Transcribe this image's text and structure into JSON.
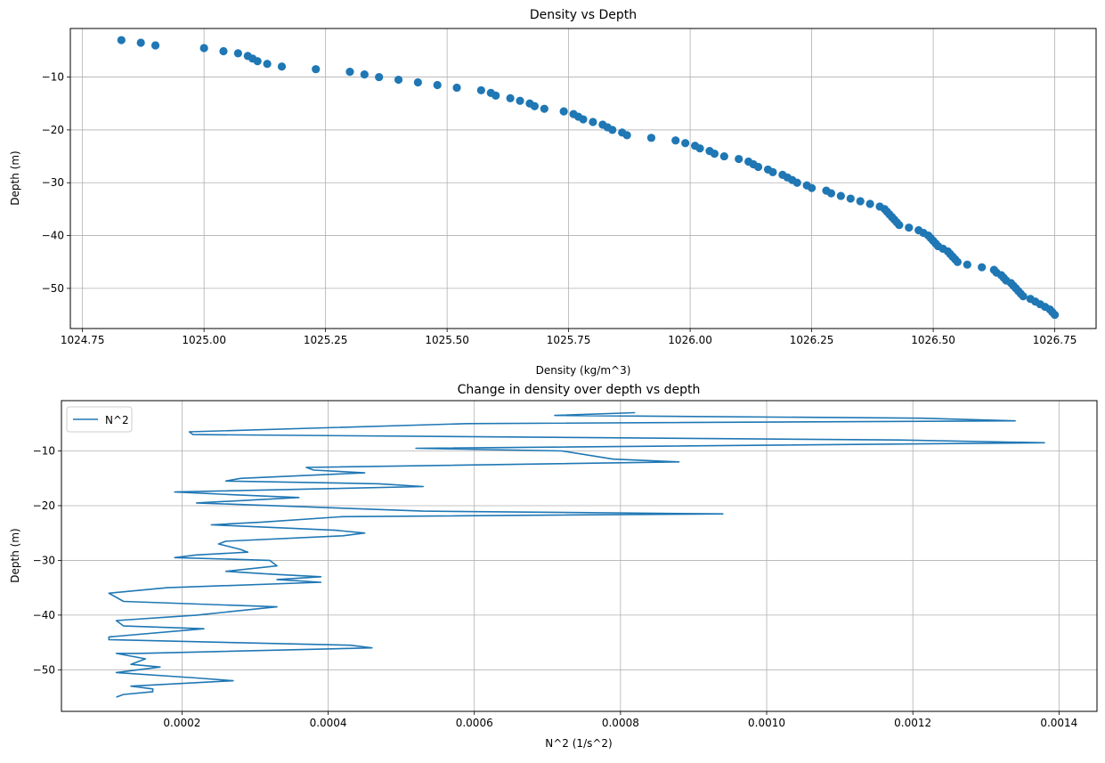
{
  "colors": {
    "series": "#1f77b4",
    "grid": "#b0b0b0",
    "axis": "#000000",
    "background": "#ffffff"
  },
  "chart_data": [
    {
      "type": "scatter",
      "title": "Density vs Depth",
      "xlabel": "Density (kg/m^3)",
      "ylabel": "Depth (m)",
      "xlim": [
        1024.725,
        1026.835
      ],
      "ylim": [
        -57.6,
        -0.8
      ],
      "xticks": [
        1024.75,
        1025.0,
        1025.25,
        1025.5,
        1025.75,
        1026.0,
        1026.25,
        1026.5,
        1026.75
      ],
      "xtick_labels": [
        "1024.75",
        "1025.00",
        "1025.25",
        "1025.50",
        "1025.75",
        "1026.00",
        "1026.25",
        "1026.50",
        "1026.75"
      ],
      "yticks": [
        -10,
        -20,
        -30,
        -40,
        -50
      ],
      "ytick_labels": [
        "−10",
        "−20",
        "−30",
        "−40",
        "−50"
      ],
      "grid": true,
      "legend": null,
      "points": [
        [
          1024.83,
          -3.0
        ],
        [
          1024.87,
          -3.5
        ],
        [
          1024.9,
          -4.0
        ],
        [
          1025.0,
          -4.5
        ],
        [
          1025.04,
          -5.1
        ],
        [
          1025.07,
          -5.5
        ],
        [
          1025.09,
          -6.0
        ],
        [
          1025.1,
          -6.5
        ],
        [
          1025.11,
          -7.0
        ],
        [
          1025.13,
          -7.5
        ],
        [
          1025.16,
          -8.0
        ],
        [
          1025.23,
          -8.5
        ],
        [
          1025.3,
          -9.0
        ],
        [
          1025.33,
          -9.5
        ],
        [
          1025.36,
          -10.0
        ],
        [
          1025.4,
          -10.5
        ],
        [
          1025.44,
          -11.0
        ],
        [
          1025.48,
          -11.5
        ],
        [
          1025.52,
          -12.0
        ],
        [
          1025.57,
          -12.5
        ],
        [
          1025.59,
          -13.0
        ],
        [
          1025.6,
          -13.5
        ],
        [
          1025.63,
          -14.0
        ],
        [
          1025.65,
          -14.5
        ],
        [
          1025.67,
          -15.0
        ],
        [
          1025.68,
          -15.5
        ],
        [
          1025.7,
          -16.0
        ],
        [
          1025.74,
          -16.5
        ],
        [
          1025.76,
          -17.0
        ],
        [
          1025.77,
          -17.5
        ],
        [
          1025.78,
          -18.0
        ],
        [
          1025.8,
          -18.5
        ],
        [
          1025.82,
          -19.0
        ],
        [
          1025.83,
          -19.5
        ],
        [
          1025.84,
          -20.0
        ],
        [
          1025.86,
          -20.5
        ],
        [
          1025.87,
          -21.0
        ],
        [
          1025.92,
          -21.5
        ],
        [
          1025.97,
          -22.0
        ],
        [
          1025.99,
          -22.5
        ],
        [
          1026.01,
          -23.0
        ],
        [
          1026.02,
          -23.5
        ],
        [
          1026.04,
          -24.0
        ],
        [
          1026.05,
          -24.5
        ],
        [
          1026.07,
          -25.0
        ],
        [
          1026.1,
          -25.5
        ],
        [
          1026.12,
          -26.0
        ],
        [
          1026.13,
          -26.5
        ],
        [
          1026.14,
          -27.0
        ],
        [
          1026.16,
          -27.5
        ],
        [
          1026.17,
          -28.0
        ],
        [
          1026.19,
          -28.5
        ],
        [
          1026.2,
          -29.0
        ],
        [
          1026.21,
          -29.5
        ],
        [
          1026.22,
          -30.0
        ],
        [
          1026.24,
          -30.5
        ],
        [
          1026.25,
          -31.0
        ],
        [
          1026.28,
          -31.5
        ],
        [
          1026.29,
          -32.0
        ],
        [
          1026.31,
          -32.5
        ],
        [
          1026.33,
          -33.0
        ],
        [
          1026.35,
          -33.5
        ],
        [
          1026.37,
          -34.0
        ],
        [
          1026.39,
          -34.5
        ],
        [
          1026.4,
          -35.0
        ],
        [
          1026.405,
          -35.5
        ],
        [
          1026.41,
          -36.0
        ],
        [
          1026.415,
          -36.5
        ],
        [
          1026.42,
          -37.0
        ],
        [
          1026.425,
          -37.5
        ],
        [
          1026.43,
          -38.0
        ],
        [
          1026.45,
          -38.5
        ],
        [
          1026.47,
          -39.0
        ],
        [
          1026.48,
          -39.5
        ],
        [
          1026.49,
          -40.0
        ],
        [
          1026.495,
          -40.5
        ],
        [
          1026.5,
          -41.0
        ],
        [
          1026.505,
          -41.5
        ],
        [
          1026.51,
          -42.0
        ],
        [
          1026.52,
          -42.5
        ],
        [
          1026.53,
          -43.0
        ],
        [
          1026.535,
          -43.5
        ],
        [
          1026.54,
          -44.0
        ],
        [
          1026.545,
          -44.5
        ],
        [
          1026.55,
          -45.0
        ],
        [
          1026.57,
          -45.5
        ],
        [
          1026.6,
          -46.0
        ],
        [
          1026.625,
          -46.5
        ],
        [
          1026.63,
          -47.0
        ],
        [
          1026.64,
          -47.5
        ],
        [
          1026.645,
          -48.0
        ],
        [
          1026.65,
          -48.5
        ],
        [
          1026.66,
          -49.0
        ],
        [
          1026.665,
          -49.5
        ],
        [
          1026.67,
          -50.0
        ],
        [
          1026.675,
          -50.5
        ],
        [
          1026.68,
          -51.0
        ],
        [
          1026.685,
          -51.5
        ],
        [
          1026.7,
          -52.0
        ],
        [
          1026.71,
          -52.5
        ],
        [
          1026.72,
          -53.0
        ],
        [
          1026.73,
          -53.5
        ],
        [
          1026.74,
          -54.0
        ],
        [
          1026.745,
          -54.5
        ],
        [
          1026.75,
          -55.0
        ]
      ]
    },
    {
      "type": "line",
      "title": "Change in density over depth vs depth",
      "xlabel": "N^2 (1/s^2)",
      "ylabel": "Depth (m)",
      "xlim": [
        3.5e-05,
        0.001452
      ],
      "ylim": [
        -57.6,
        -0.8
      ],
      "xticks": [
        0.0002,
        0.0004,
        0.0006,
        0.0008,
        0.001,
        0.0012,
        0.0014
      ],
      "xtick_labels": [
        "0.0002",
        "0.0004",
        "0.0006",
        "0.0008",
        "0.0010",
        "0.0012",
        "0.0014"
      ],
      "yticks": [
        -10,
        -20,
        -30,
        -40,
        -50
      ],
      "ytick_labels": [
        "−10",
        "−20",
        "−30",
        "−40",
        "−50"
      ],
      "grid": true,
      "legend": "top-left",
      "series": [
        {
          "name": "N^2",
          "points": [
            [
              0.00082,
              -3.0
            ],
            [
              0.00071,
              -3.5
            ],
            [
              0.00121,
              -4.0
            ],
            [
              0.00134,
              -4.5
            ],
            [
              0.00059,
              -5.0
            ],
            [
              0.00021,
              -6.5
            ],
            [
              0.000215,
              -7.0
            ],
            [
              0.00118,
              -8.0
            ],
            [
              0.00138,
              -8.5
            ],
            [
              0.00052,
              -9.5
            ],
            [
              0.00072,
              -10.0
            ],
            [
              0.00079,
              -11.5
            ],
            [
              0.00088,
              -12.0
            ],
            [
              0.00037,
              -13.0
            ],
            [
              0.00038,
              -13.5
            ],
            [
              0.00045,
              -14.0
            ],
            [
              0.00028,
              -15.0
            ],
            [
              0.00026,
              -15.5
            ],
            [
              0.00047,
              -16.0
            ],
            [
              0.00053,
              -16.5
            ],
            [
              0.00019,
              -17.5
            ],
            [
              0.00027,
              -18.0
            ],
            [
              0.00036,
              -18.5
            ],
            [
              0.00022,
              -19.5
            ],
            [
              0.00053,
              -21.0
            ],
            [
              0.00094,
              -21.5
            ],
            [
              0.00042,
              -22.0
            ],
            [
              0.00031,
              -23.0
            ],
            [
              0.00024,
              -23.5
            ],
            [
              0.00041,
              -24.5
            ],
            [
              0.00045,
              -25.0
            ],
            [
              0.00042,
              -25.5
            ],
            [
              0.00026,
              -26.5
            ],
            [
              0.00025,
              -27.0
            ],
            [
              0.00028,
              -28.0
            ],
            [
              0.00029,
              -28.5
            ],
            [
              0.00022,
              -29.0
            ],
            [
              0.00019,
              -29.5
            ],
            [
              0.00032,
              -30.0
            ],
            [
              0.00033,
              -31.0
            ],
            [
              0.00026,
              -32.0
            ],
            [
              0.00032,
              -32.5
            ],
            [
              0.00039,
              -33.0
            ],
            [
              0.00033,
              -33.5
            ],
            [
              0.00039,
              -34.0
            ],
            [
              0.00018,
              -35.0
            ],
            [
              0.0001,
              -36.0
            ],
            [
              0.00012,
              -37.5
            ],
            [
              0.00033,
              -38.5
            ],
            [
              0.00022,
              -40.0
            ],
            [
              0.00011,
              -41.0
            ],
            [
              0.00012,
              -42.0
            ],
            [
              0.00023,
              -42.5
            ],
            [
              0.0001,
              -44.0
            ],
            [
              0.0001,
              -44.5
            ],
            [
              0.00043,
              -45.5
            ],
            [
              0.00046,
              -46.0
            ],
            [
              0.00014,
              -47.0
            ],
            [
              0.00011,
              -47.0
            ],
            [
              0.00015,
              -48.0
            ],
            [
              0.00013,
              -49.0
            ],
            [
              0.00017,
              -49.5
            ],
            [
              0.00011,
              -50.5
            ],
            [
              0.00022,
              -51.5
            ],
            [
              0.00027,
              -52.0
            ],
            [
              0.00013,
              -53.0
            ],
            [
              0.00016,
              -53.5
            ],
            [
              0.00016,
              -54.0
            ],
            [
              0.00012,
              -54.5
            ],
            [
              0.00011,
              -55.0
            ]
          ]
        }
      ]
    }
  ]
}
